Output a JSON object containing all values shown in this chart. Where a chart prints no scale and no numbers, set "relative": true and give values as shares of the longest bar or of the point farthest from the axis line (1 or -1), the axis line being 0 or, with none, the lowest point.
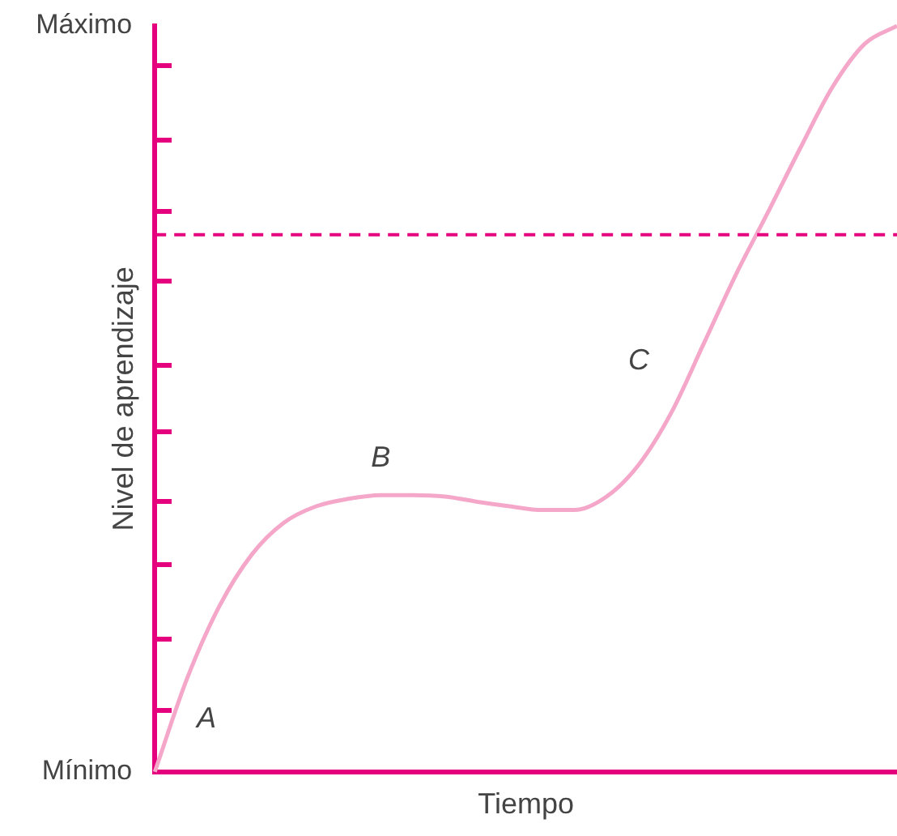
{
  "chart_data": {
    "type": "line",
    "xlabel": "Tiempo",
    "ylabel": "Nivel de aprendizaje",
    "relative": true,
    "categories": [
      null,
      null,
      null,
      null,
      null,
      null,
      null,
      null,
      null,
      null,
      null,
      null,
      null,
      null,
      null,
      null,
      null,
      null,
      null,
      null,
      null,
      null,
      null,
      null
    ],
    "series": [
      {
        "color": "#f4a7c9",
        "values": [
          0.0,
          0.125,
          0.222,
          0.291,
          0.334,
          0.356,
          0.366,
          0.371,
          0.371,
          0.369,
          0.362,
          0.356,
          0.351,
          0.351,
          0.369,
          0.412,
          0.481,
          0.573,
          0.666,
          0.75,
          0.836,
          0.918,
          0.976,
          1.0
        ]
      }
    ],
    "ref_lines": [
      {
        "axis": "y",
        "value": 0.72,
        "color": "#e5007e",
        "line_style": "dashed"
      }
    ],
    "annotations": [
      "Máximo",
      "Mínimo",
      "A",
      "B",
      "C"
    ],
    "grid": false,
    "legend": false,
    "marker": "none",
    "line_style": "solid"
  }
}
